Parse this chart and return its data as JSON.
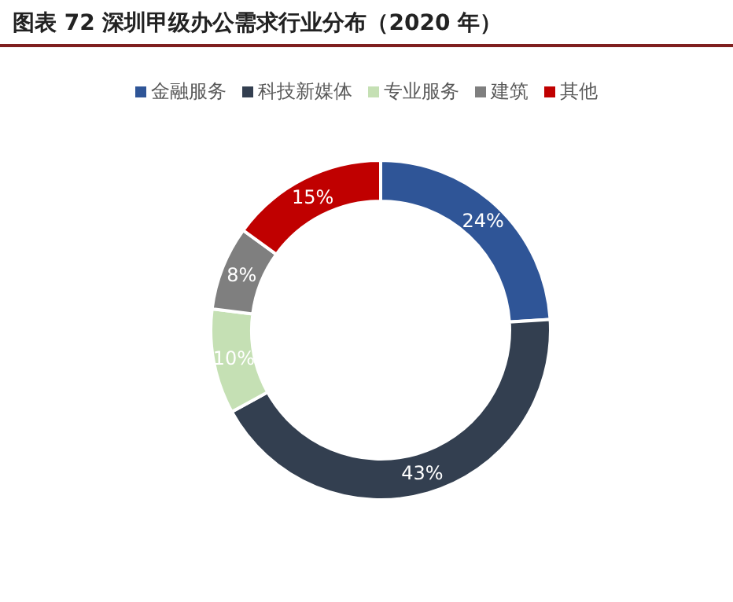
{
  "chart_data": {
    "type": "donut",
    "title": "图表 72 深圳甲级办公需求行业分布（2020 年）",
    "categories": [
      "金融服务",
      "科技新媒体",
      "专业服务",
      "建筑",
      "其他"
    ],
    "values": [
      24,
      43,
      10,
      8,
      15
    ],
    "colors": [
      "#2f5597",
      "#333f50",
      "#c5e0b4",
      "#7f7f7f",
      "#c00000"
    ],
    "value_labels": [
      "24%",
      "43%",
      "10%",
      "8%",
      "15%"
    ],
    "legend": "top"
  }
}
